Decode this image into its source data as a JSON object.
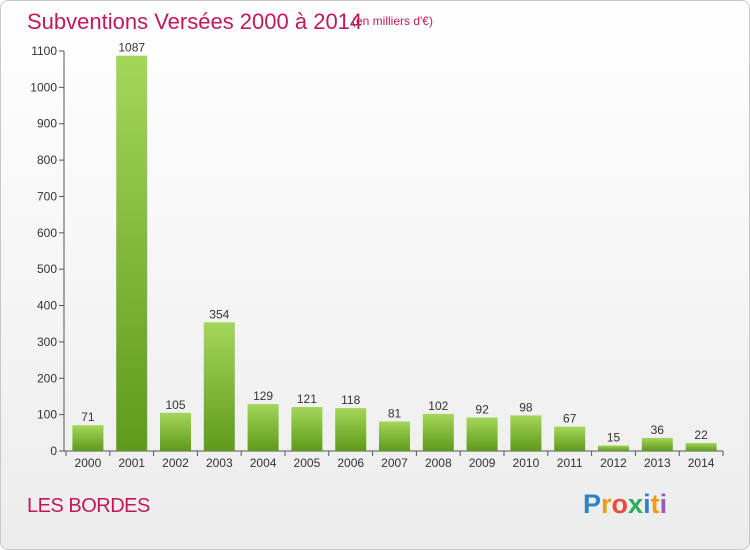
{
  "header": {
    "title": "Subventions Versées 2000 à 2014",
    "subtitle": "(en milliers d'€)"
  },
  "footer": {
    "commune": "LES BORDES",
    "logo_text": "Proxiti"
  },
  "colors": {
    "title": "#c2185b",
    "bar_light": "#a4d65a",
    "bar_dark": "#5f9a1a",
    "axis": "#555555"
  },
  "chart_data": {
    "type": "bar",
    "title": "Subventions Versées 2000 à 2014",
    "subtitle": "(en milliers d'€)",
    "xlabel": "",
    "ylabel": "",
    "categories": [
      "2000",
      "2001",
      "2002",
      "2003",
      "2004",
      "2005",
      "2006",
      "2007",
      "2008",
      "2009",
      "2010",
      "2011",
      "2012",
      "2013",
      "2014"
    ],
    "values": [
      71,
      1087,
      105,
      354,
      129,
      121,
      118,
      81,
      102,
      92,
      98,
      67,
      15,
      36,
      22
    ],
    "ylim": [
      0,
      1100
    ],
    "yticks": [
      0,
      100,
      200,
      300,
      400,
      500,
      600,
      700,
      800,
      900,
      1000,
      1100
    ],
    "data_labels": true,
    "grid": false,
    "legend": "none"
  }
}
